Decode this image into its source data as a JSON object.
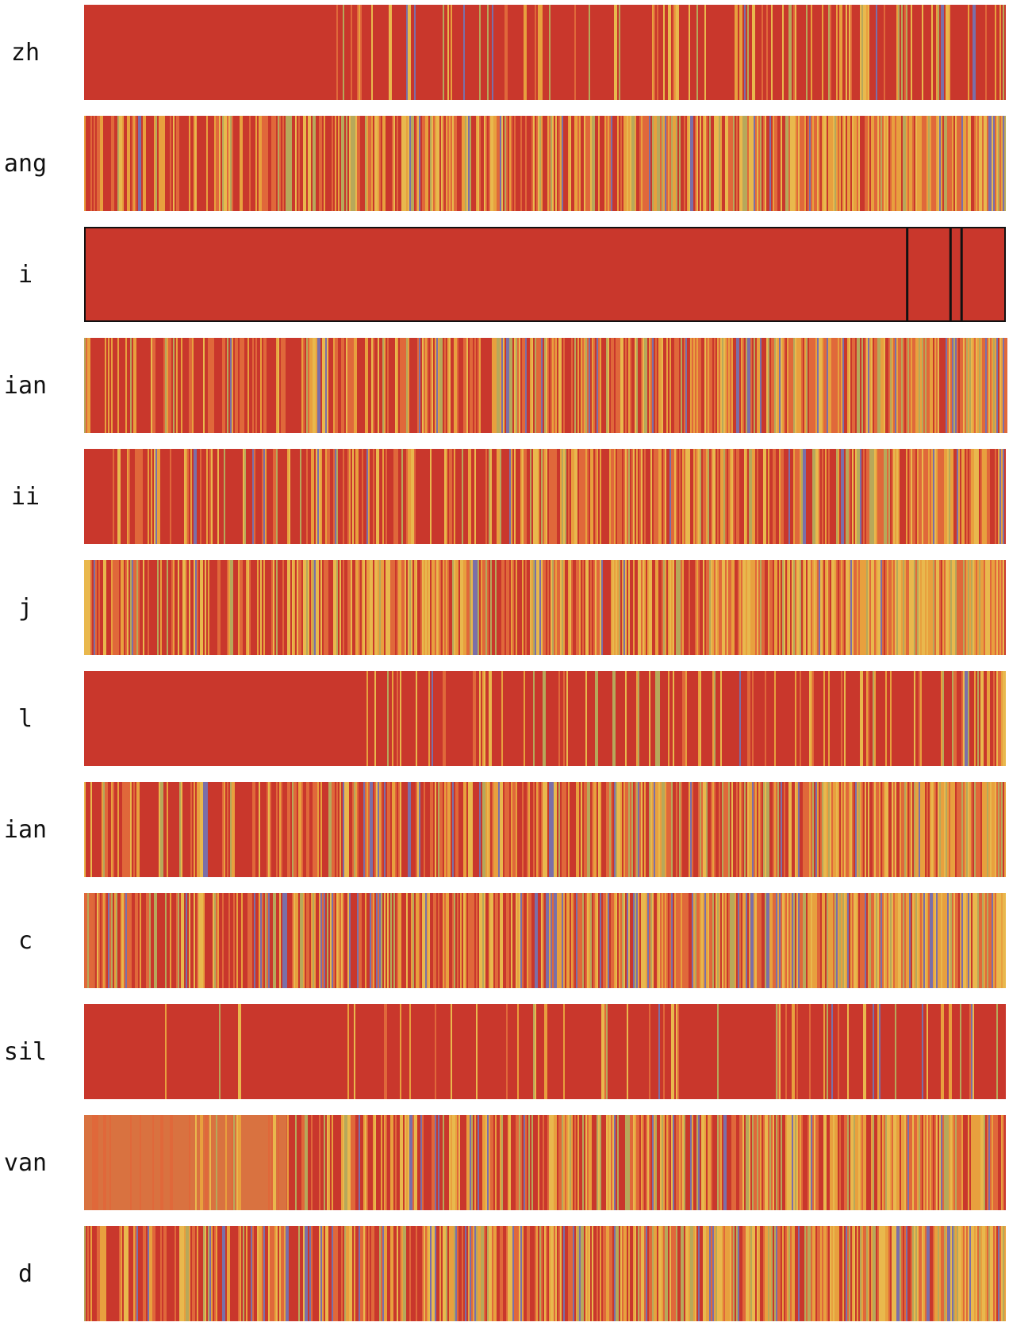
{
  "chart_data": {
    "type": "heatmap",
    "title": "",
    "xlabel": "",
    "ylabel": "",
    "grid": false,
    "legend": "none",
    "rows": [
      {
        "label": "zh",
        "density": 0.3,
        "onset": 0.27,
        "ramp": 1.0,
        "palette": "red-dominant",
        "seed": 11
      },
      {
        "label": "ang",
        "density": 0.78,
        "onset": 0.0,
        "ramp": 1.0,
        "palette": "mixed",
        "seed": 23
      },
      {
        "label": "i",
        "density": 0.0,
        "onset": 0.0,
        "ramp": 1.0,
        "palette": "solid",
        "seed": 37,
        "highlighted": true,
        "dividers": [
          0.893,
          0.94,
          0.952
        ]
      },
      {
        "label": "ian",
        "density": 0.7,
        "onset": 0.0,
        "ramp": 1.0,
        "palette": "mixed",
        "seed": 41
      },
      {
        "label": "ii",
        "density": 0.55,
        "onset": 0.03,
        "ramp": 1.0,
        "palette": "mixed",
        "seed": 53
      },
      {
        "label": "j",
        "density": 0.8,
        "onset": 0.0,
        "ramp": 1.0,
        "palette": "yellow-heavy",
        "seed": 67
      },
      {
        "label": "l",
        "density": 0.22,
        "onset": 0.3,
        "ramp": 1.0,
        "palette": "red-dominant",
        "seed": 71
      },
      {
        "label": "ian",
        "density": 0.72,
        "onset": 0.0,
        "ramp": 1.0,
        "palette": "mixed",
        "seed": 83
      },
      {
        "label": "c",
        "density": 0.82,
        "onset": 0.0,
        "ramp": 1.0,
        "palette": "mixed-blue",
        "seed": 97,
        "base_start": "#d6643a"
      },
      {
        "label": "sil",
        "density": 0.14,
        "onset": 0.08,
        "ramp": 1.0,
        "palette": "red-dominant",
        "seed": 101
      },
      {
        "label": "van",
        "density": 0.65,
        "onset": 0.0,
        "ramp": 1.0,
        "palette": "mixed",
        "seed": 113,
        "base_start": "#d97240",
        "base_start_until": 0.22
      },
      {
        "label": "d",
        "density": 0.78,
        "onset": 0.0,
        "ramp": 1.0,
        "palette": "mixed-blue",
        "seed": 127
      }
    ],
    "colors": {
      "base": "#c9372c",
      "orange": "#e0683a",
      "amber": "#e8a03e",
      "yellow": "#e9b84d",
      "olive": "#b7a85a",
      "blue": "#7b6fa8",
      "highlight_border": "#111111"
    }
  }
}
